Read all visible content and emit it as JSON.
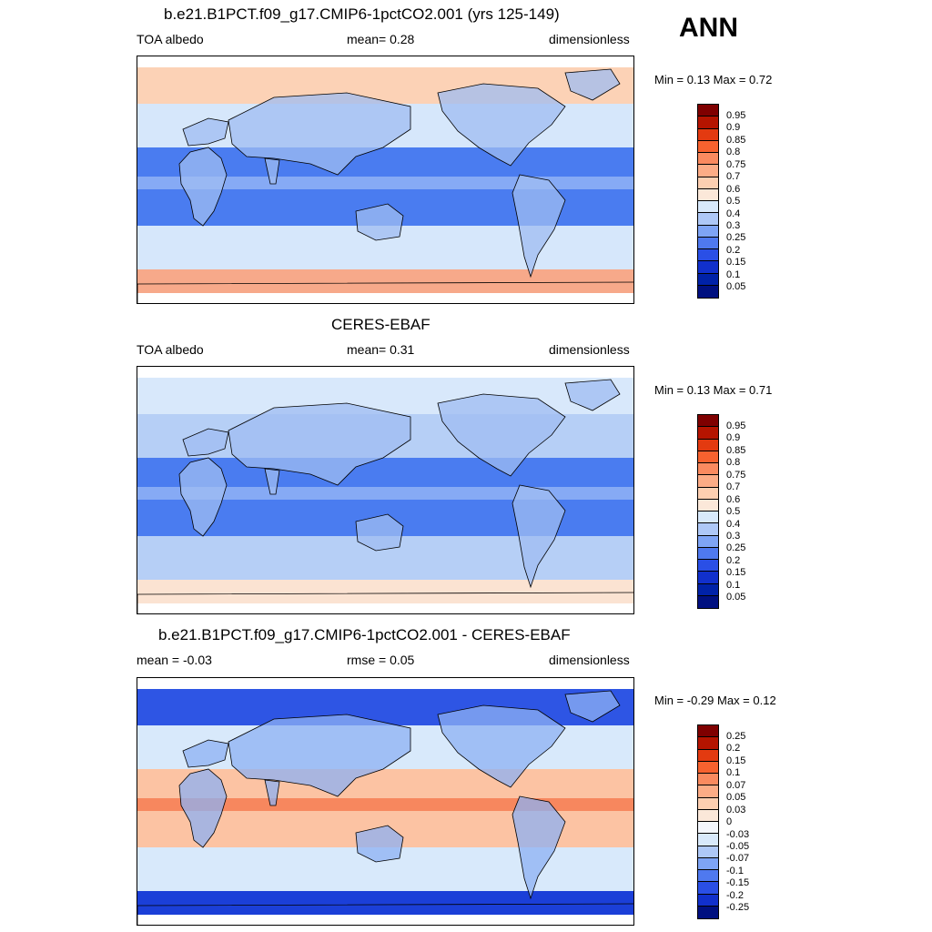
{
  "season": "ANN",
  "panels": [
    {
      "title": "b.e21.B1PCT.f09_g17.CMIP6-1pctCO2.001 (yrs 125-149)",
      "left": "TOA albedo",
      "center": "mean=   0.28",
      "right": "dimensionless",
      "minmax": "Min =   0.13 Max =   0.72",
      "colorbar": {
        "labels": [
          "0.95",
          "0.9",
          "0.85",
          "0.8",
          "0.75",
          "0.7",
          "0.6",
          "0.5",
          "0.4",
          "0.3",
          "0.25",
          "0.2",
          "0.15",
          "0.1",
          "0.05"
        ],
        "colors": [
          "#7f0000",
          "#b51400",
          "#e33a10",
          "#f7622f",
          "#fa8a5f",
          "#fcac86",
          "#fdcfb1",
          "#fbe8d9",
          "#d8e9fb",
          "#aec8f7",
          "#7ea4f5",
          "#4f79ef",
          "#2a4fe6",
          "#1130cc",
          "#0022a8",
          "#001080"
        ]
      },
      "map_colors": {
        "polar_south": "#f7a98a",
        "arctic": "#fcd2b6",
        "subtropics": "#4a7cf0",
        "midlat": "#d6e7fb",
        "land": "#9fbcf2",
        "itcz": "#86aaf5"
      }
    },
    {
      "title": "CERES-EBAF",
      "left": "TOA albedo",
      "center": "mean=   0.31",
      "right": "dimensionless",
      "minmax": "Min =   0.13 Max =   0.71",
      "colorbar": {
        "labels": [
          "0.95",
          "0.9",
          "0.85",
          "0.8",
          "0.75",
          "0.7",
          "0.6",
          "0.5",
          "0.4",
          "0.3",
          "0.25",
          "0.2",
          "0.15",
          "0.1",
          "0.05"
        ],
        "colors": [
          "#7f0000",
          "#b51400",
          "#e33a10",
          "#f7622f",
          "#fa8a5f",
          "#fcac86",
          "#fdcfb1",
          "#fbe8d9",
          "#d8e9fb",
          "#aec8f7",
          "#7ea4f5",
          "#4f79ef",
          "#2a4fe6",
          "#1130cc",
          "#0022a8",
          "#001080"
        ]
      },
      "map_colors": {
        "polar_south": "#fbe3d2",
        "arctic": "#d8e8fb",
        "subtropics": "#4a7cf0",
        "midlat": "#b6cff6",
        "land": "#9fbcf2",
        "itcz": "#86aaf5"
      }
    },
    {
      "title": "b.e21.B1PCT.f09_g17.CMIP6-1pctCO2.001 - CERES-EBAF",
      "left": "mean =  -0.03",
      "center": "rmse =   0.05",
      "right": "dimensionless",
      "minmax": "Min =  -0.29 Max =   0.12",
      "colorbar": {
        "labels": [
          "0.25",
          "0.2",
          "0.15",
          "0.1",
          "0.07",
          "0.05",
          "0.03",
          "0",
          "-0.03",
          "-0.05",
          "-0.07",
          "-0.1",
          "-0.15",
          "-0.2",
          "-0.25"
        ],
        "colors": [
          "#7f0000",
          "#b51400",
          "#e33a10",
          "#f7622f",
          "#fa8a5f",
          "#fcac86",
          "#fdcfb1",
          "#fbe8d9",
          "#f4f7fd",
          "#d8e9fb",
          "#aec8f7",
          "#7ea4f5",
          "#4f79ef",
          "#2a4fe6",
          "#1130cc",
          "#001080"
        ]
      },
      "map_colors": {
        "polar_south": "#1b3fd8",
        "arctic": "#2e55e4",
        "subtropics": "#fcc3a3",
        "midlat": "#d8e9fb",
        "land": "#8eb0f3",
        "itcz": "#f7875e"
      }
    }
  ]
}
